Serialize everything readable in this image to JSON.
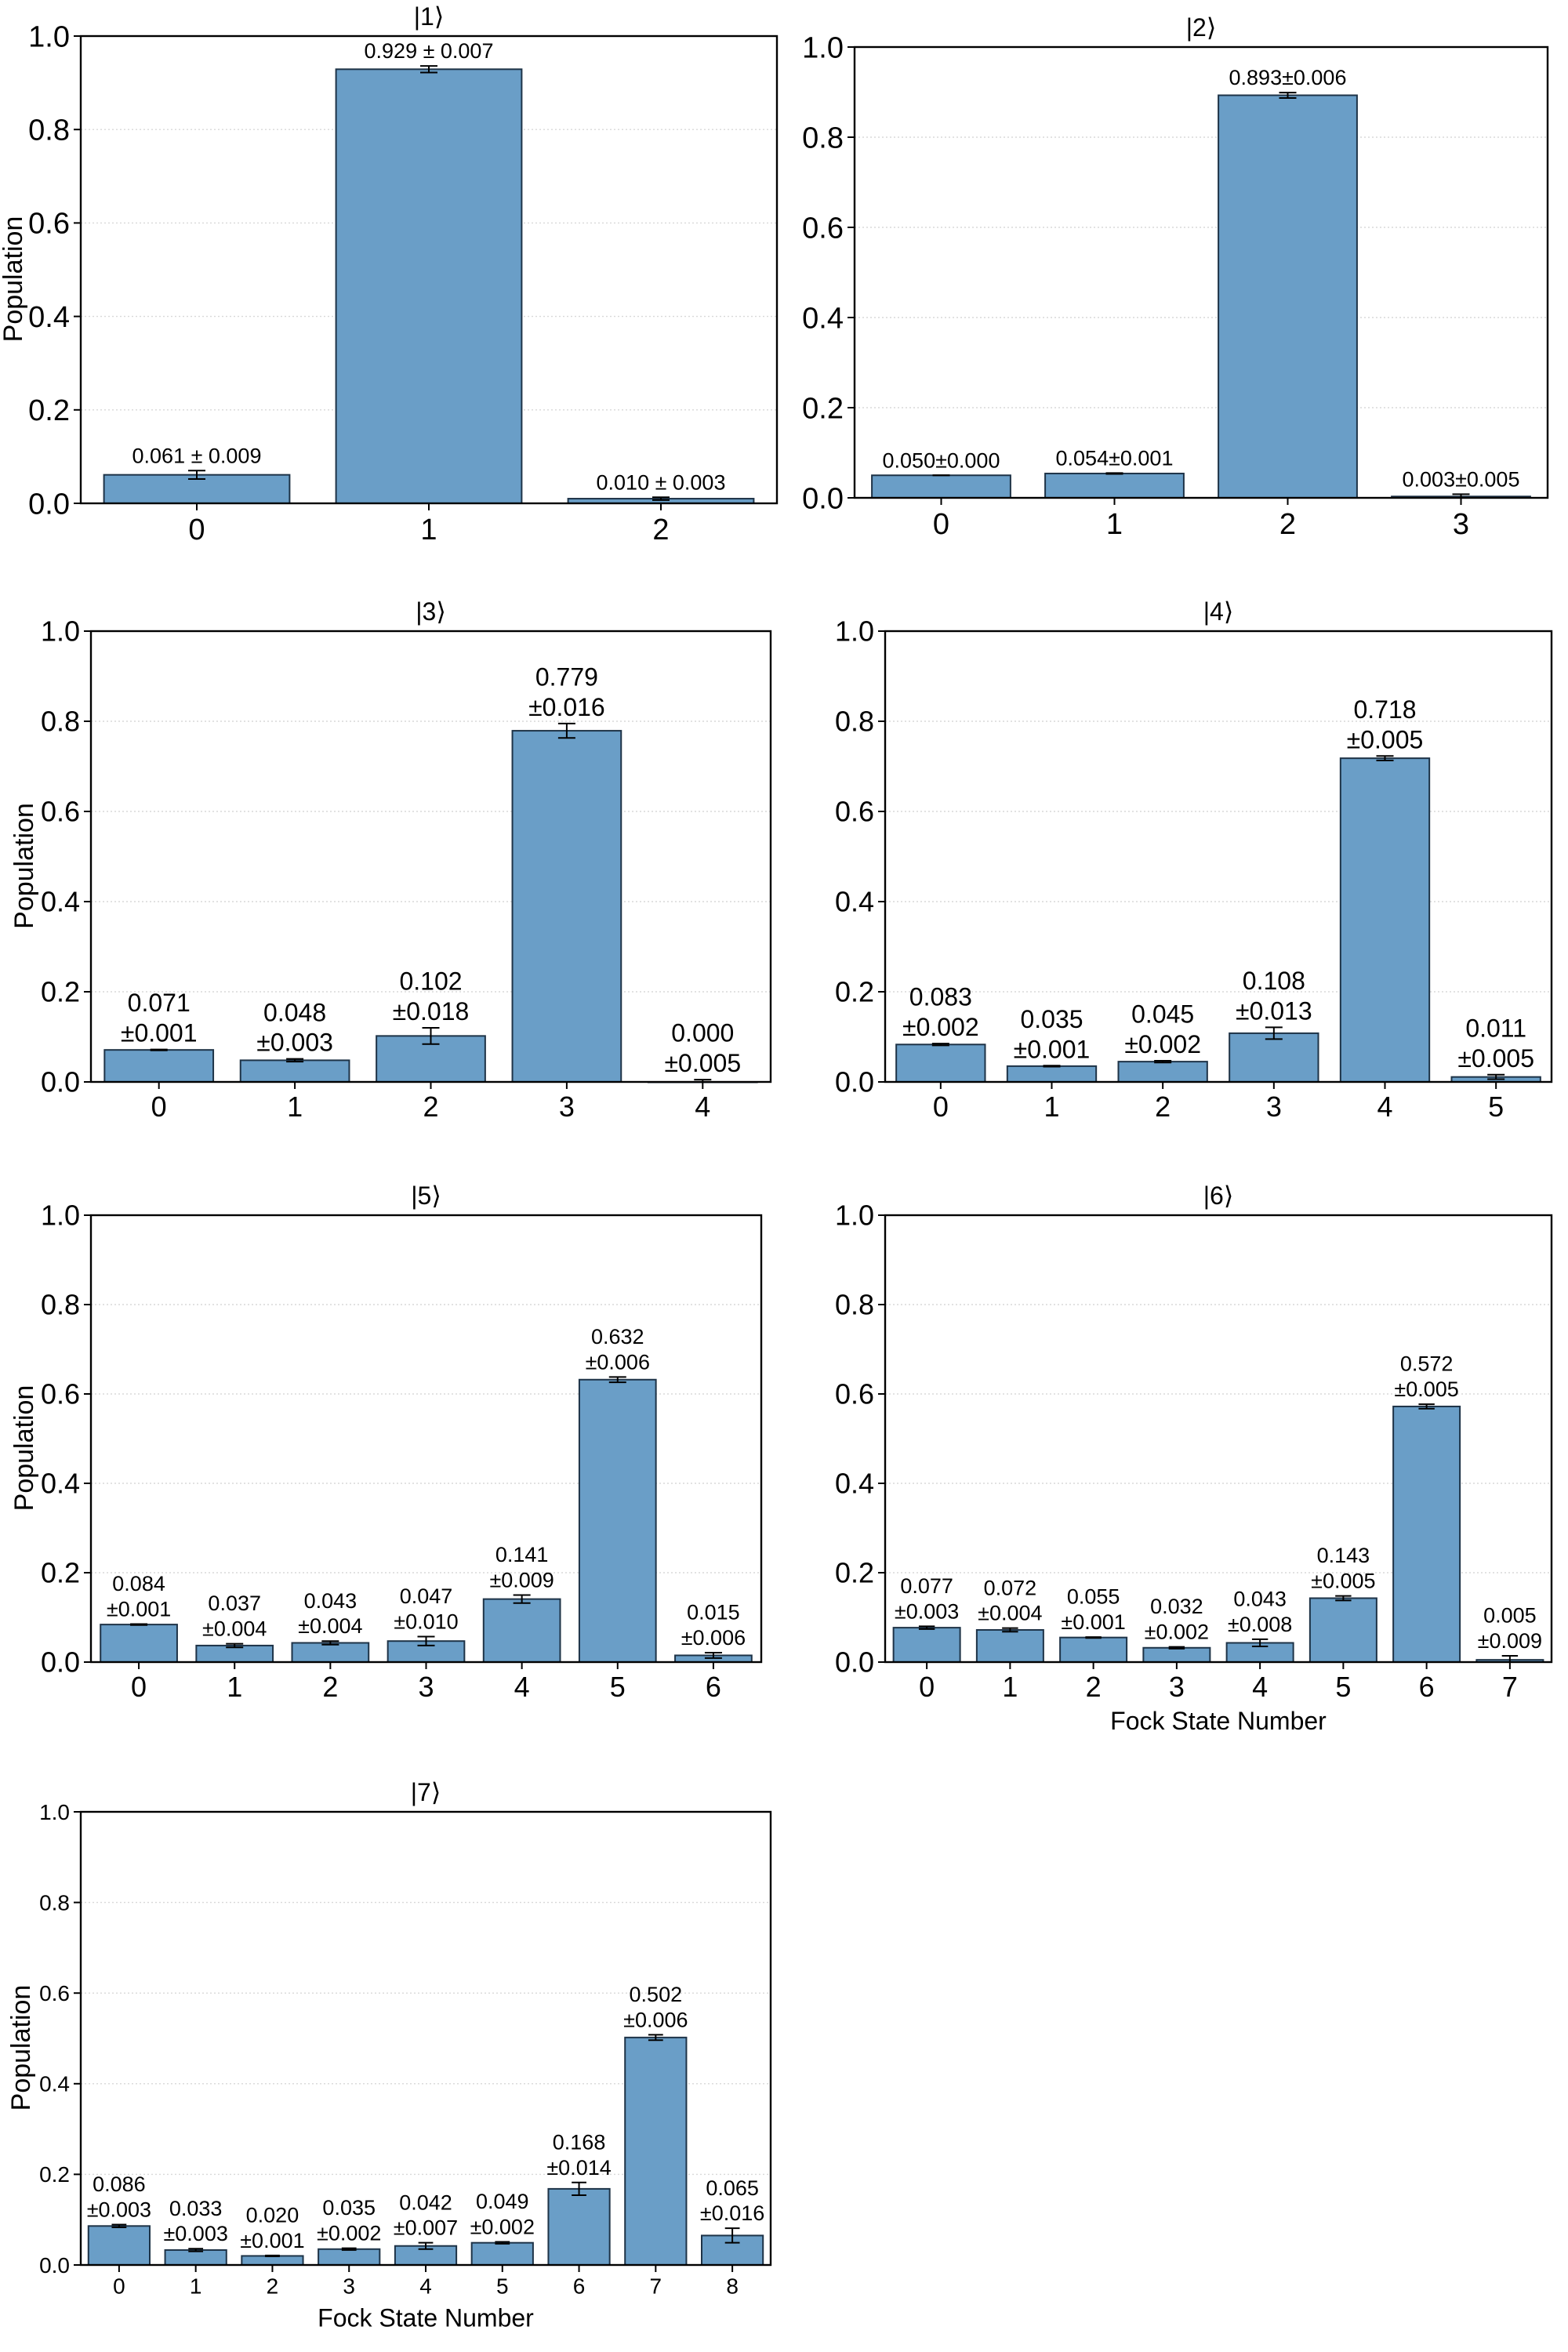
{
  "figure": {
    "x_axis_label": "Fock State Number",
    "y_axis_label": "Population"
  },
  "chart_data": [
    {
      "type": "bar",
      "title": "|1⟩",
      "categories": [
        "0",
        "1",
        "2"
      ],
      "values": [
        0.061,
        0.929,
        0.01
      ],
      "errors": [
        0.009,
        0.007,
        0.003
      ],
      "value_labels": [
        "0.061 ± 0.009",
        "0.929 ± 0.007",
        "0.010 ± 0.003"
      ],
      "xlabel": "",
      "ylabel": "Population",
      "ylim": [
        0,
        1.0
      ],
      "yticks": [
        "0.0",
        "0.2",
        "0.4",
        "0.6",
        "0.8",
        "1.0"
      ],
      "grid": true
    },
    {
      "type": "bar",
      "title": "|2⟩",
      "categories": [
        "0",
        "1",
        "2",
        "3"
      ],
      "values": [
        0.05,
        0.054,
        0.893,
        0.003
      ],
      "errors": [
        0.0,
        0.001,
        0.006,
        0.005
      ],
      "value_labels": [
        "0.050±0.000",
        "0.054±0.001",
        "0.893±0.006",
        "0.003±0.005"
      ],
      "xlabel": "",
      "ylabel": "",
      "ylim": [
        0,
        1.0
      ],
      "yticks": [
        "0.0",
        "0.2",
        "0.4",
        "0.6",
        "0.8",
        "1.0"
      ],
      "grid": true
    },
    {
      "type": "bar",
      "title": "|3⟩",
      "categories": [
        "0",
        "1",
        "2",
        "3",
        "4"
      ],
      "values": [
        0.071,
        0.048,
        0.102,
        0.779,
        0.0
      ],
      "errors": [
        0.001,
        0.003,
        0.018,
        0.016,
        0.005
      ],
      "value_labels": [
        [
          "0.071",
          "±0.001"
        ],
        [
          "0.048",
          "±0.003"
        ],
        [
          "0.102",
          "±0.018"
        ],
        [
          "0.779",
          "±0.016"
        ],
        [
          "0.000",
          "±0.005"
        ]
      ],
      "xlabel": "",
      "ylabel": "Population",
      "ylim": [
        0,
        1.0
      ],
      "yticks": [
        "0.0",
        "0.2",
        "0.4",
        "0.6",
        "0.8",
        "1.0"
      ],
      "grid": true
    },
    {
      "type": "bar",
      "title": "|4⟩",
      "categories": [
        "0",
        "1",
        "2",
        "3",
        "4",
        "5"
      ],
      "values": [
        0.083,
        0.035,
        0.045,
        0.108,
        0.718,
        0.011
      ],
      "errors": [
        0.002,
        0.001,
        0.002,
        0.013,
        0.005,
        0.005
      ],
      "value_labels": [
        [
          "0.083",
          "±0.002"
        ],
        [
          "0.035",
          "±0.001"
        ],
        [
          "0.045",
          "±0.002"
        ],
        [
          "0.108",
          "±0.013"
        ],
        [
          "0.718",
          "±0.005"
        ],
        [
          "0.011",
          "±0.005"
        ]
      ],
      "xlabel": "",
      "ylabel": "",
      "ylim": [
        0,
        1.0
      ],
      "yticks": [
        "0.0",
        "0.2",
        "0.4",
        "0.6",
        "0.8",
        "1.0"
      ],
      "grid": true
    },
    {
      "type": "bar",
      "title": "|5⟩",
      "categories": [
        "0",
        "1",
        "2",
        "3",
        "4",
        "5",
        "6"
      ],
      "values": [
        0.084,
        0.037,
        0.043,
        0.047,
        0.141,
        0.632,
        0.015
      ],
      "errors": [
        0.001,
        0.004,
        0.004,
        0.01,
        0.009,
        0.006,
        0.006
      ],
      "value_labels": [
        [
          "0.084",
          "±0.001"
        ],
        [
          "0.037",
          "±0.004"
        ],
        [
          "0.043",
          "±0.004"
        ],
        [
          "0.047",
          "±0.010"
        ],
        [
          "0.141",
          "±0.009"
        ],
        [
          "0.632",
          "±0.006"
        ],
        [
          "0.015",
          "±0.006"
        ]
      ],
      "xlabel": "",
      "ylabel": "Population",
      "ylim": [
        0,
        1.0
      ],
      "yticks": [
        "0.0",
        "0.2",
        "0.4",
        "0.6",
        "0.8",
        "1.0"
      ],
      "grid": true
    },
    {
      "type": "bar",
      "title": "|6⟩",
      "categories": [
        "0",
        "1",
        "2",
        "3",
        "4",
        "5",
        "6",
        "7"
      ],
      "values": [
        0.077,
        0.072,
        0.055,
        0.032,
        0.043,
        0.143,
        0.572,
        0.005
      ],
      "errors": [
        0.003,
        0.004,
        0.001,
        0.002,
        0.008,
        0.005,
        0.005,
        0.009
      ],
      "value_labels": [
        [
          "0.077",
          "±0.003"
        ],
        [
          "0.072",
          "±0.004"
        ],
        [
          "0.055",
          "±0.001"
        ],
        [
          "0.032",
          "±0.002"
        ],
        [
          "0.043",
          "±0.008"
        ],
        [
          "0.143",
          "±0.005"
        ],
        [
          "0.572",
          "±0.005"
        ],
        [
          "0.005",
          "±0.009"
        ]
      ],
      "xlabel": "Fock State Number",
      "ylabel": "",
      "ylim": [
        0,
        1.0
      ],
      "yticks": [
        "0.0",
        "0.2",
        "0.4",
        "0.6",
        "0.8",
        "1.0"
      ],
      "grid": true
    },
    {
      "type": "bar",
      "title": "|7⟩",
      "categories": [
        "0",
        "1",
        "2",
        "3",
        "4",
        "5",
        "6",
        "7",
        "8"
      ],
      "values": [
        0.086,
        0.033,
        0.02,
        0.035,
        0.042,
        0.049,
        0.168,
        0.502,
        0.065
      ],
      "errors": [
        0.003,
        0.003,
        0.001,
        0.002,
        0.007,
        0.002,
        0.014,
        0.006,
        0.016
      ],
      "value_labels": [
        [
          "0.086",
          "±0.003"
        ],
        [
          "0.033",
          "±0.003"
        ],
        [
          "0.020",
          "±0.001"
        ],
        [
          "0.035",
          "±0.002"
        ],
        [
          "0.042",
          "±0.007"
        ],
        [
          "0.049",
          "±0.002"
        ],
        [
          "0.168",
          "±0.014"
        ],
        [
          "0.502",
          "±0.006"
        ],
        [
          "0.065",
          "±0.016"
        ]
      ],
      "xlabel": "Fock State Number",
      "ylabel": "Population",
      "ylim": [
        0,
        1.0
      ],
      "yticks": [
        "0.0",
        "0.2",
        "0.4",
        "0.6",
        "0.8",
        "1.0"
      ],
      "grid": true
    }
  ]
}
